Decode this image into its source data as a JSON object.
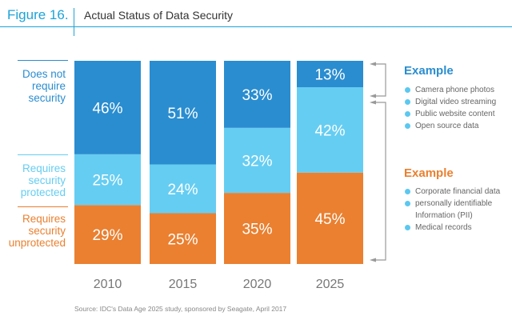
{
  "header": {
    "figure_label": "Figure 16.",
    "title": "Actual Status of Data Security"
  },
  "colors": {
    "accent": "#1ea3d8",
    "does_not_require": "#2a8dd0",
    "protected": "#66cdf2",
    "unprotected": "#ea8030",
    "bullet": "#5cc8f0",
    "bracket": "#999999"
  },
  "legend": [
    {
      "label": "Does not require security",
      "lines": [
        "Does not",
        "require",
        "security"
      ],
      "color": "#2a8dd0"
    },
    {
      "label": "Requires security protected",
      "lines": [
        "Requires",
        "security",
        "protected"
      ],
      "color": "#66cdf2"
    },
    {
      "label": "Requires security unprotected",
      "lines": [
        "Requires",
        "security",
        "unprotected"
      ],
      "color": "#ea8030"
    }
  ],
  "examples": [
    {
      "title": "Example",
      "color": "#2a8dd0",
      "items": [
        "Camera phone photos",
        "Digital video streaming",
        "Public website content",
        "Open source data"
      ]
    },
    {
      "title": "Example",
      "color": "#ea8030",
      "items": [
        "Corporate financial data",
        "personally identifiable Information (PII)",
        "Medical records"
      ]
    }
  ],
  "source": "Source: IDC's Data Age 2025 study, sponsored by Seagate, April 2017",
  "chart_data": {
    "type": "bar",
    "stacked": true,
    "title": "Actual Status of Data Security",
    "categories": [
      "2010",
      "2015",
      "2020",
      "2025"
    ],
    "series": [
      {
        "name": "Requires security unprotected",
        "color": "#ea8030",
        "values": [
          29,
          25,
          35,
          45
        ]
      },
      {
        "name": "Requires security protected",
        "color": "#66cdf2",
        "values": [
          25,
          24,
          32,
          42
        ]
      },
      {
        "name": "Does not require security",
        "color": "#2a8dd0",
        "values": [
          46,
          51,
          33,
          13
        ]
      }
    ],
    "ylim": [
      0,
      100
    ],
    "value_suffix": "%",
    "xlabel": "",
    "ylabel": "",
    "grid": false,
    "legend_position": "left"
  }
}
